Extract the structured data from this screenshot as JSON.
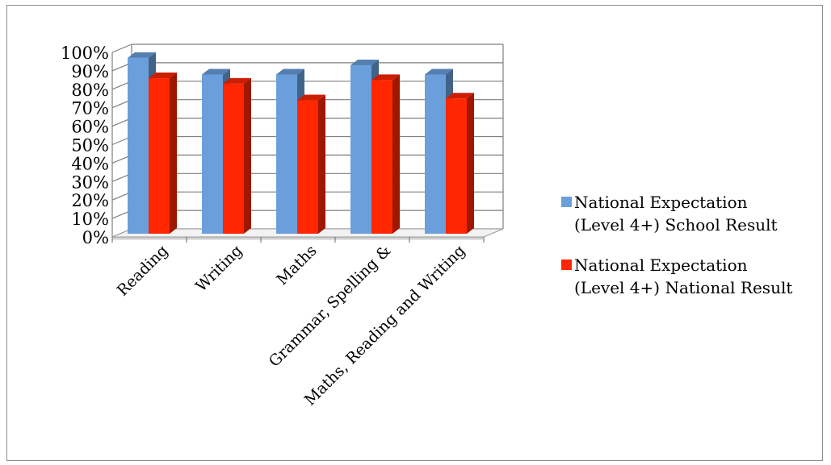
{
  "chart_data": {
    "type": "bar",
    "title": "",
    "xlabel": "",
    "ylabel": "",
    "categories": [
      "Reading",
      "Writing",
      "Maths",
      "Grammar, Spelling &",
      "Maths, Reading and Writing"
    ],
    "series": [
      {
        "name": "National Expectation (Level 4+) School Result",
        "values": [
          97,
          88,
          88,
          93,
          88
        ],
        "color": "#6a9fdc"
      },
      {
        "name": "National Expectation (Level 4+) National Result",
        "values": [
          86,
          83,
          74,
          85,
          75
        ],
        "color": "#ff2600"
      }
    ],
    "ylim": [
      0,
      100
    ],
    "yticks": [
      "0%",
      "10%",
      "20%",
      "30%",
      "40%",
      "50%",
      "60%",
      "70%",
      "80%",
      "90%",
      "100%"
    ],
    "grid": true,
    "legend_position": "right",
    "style": "3d-clustered-column"
  },
  "legend": {
    "entries": [
      {
        "line1": "National Expectation",
        "line2": "(Level 4+) School Result",
        "color": "#6a9fdc"
      },
      {
        "line1": "National Expectation",
        "line2": "(Level 4+) National Result",
        "color": "#ff2600"
      }
    ]
  }
}
